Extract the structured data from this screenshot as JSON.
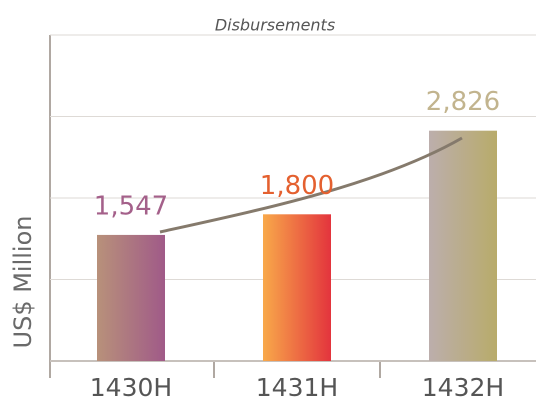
{
  "chart_data": {
    "type": "bar",
    "title": "Disbursements",
    "y_label": "US$ Million",
    "categories": [
      "1430H",
      "1431H",
      "1432H"
    ],
    "values": [
      1547,
      1800,
      2826
    ],
    "value_labels": [
      "1,547",
      "1,800",
      "2,826"
    ],
    "colors": [
      [
        "#b8917a",
        "#a05a88"
      ],
      [
        "#f8a94a",
        "#e3343d"
      ],
      [
        "#bcaeac",
        "#b8ab6a"
      ]
    ],
    "label_colors": [
      "#a4608a",
      "#e4602f",
      "#c2b48e"
    ],
    "ylim": [
      0,
      4000
    ],
    "yticks": [
      0,
      1000,
      2000,
      3000,
      4000
    ],
    "ytick_labels": false,
    "grid": true
  }
}
